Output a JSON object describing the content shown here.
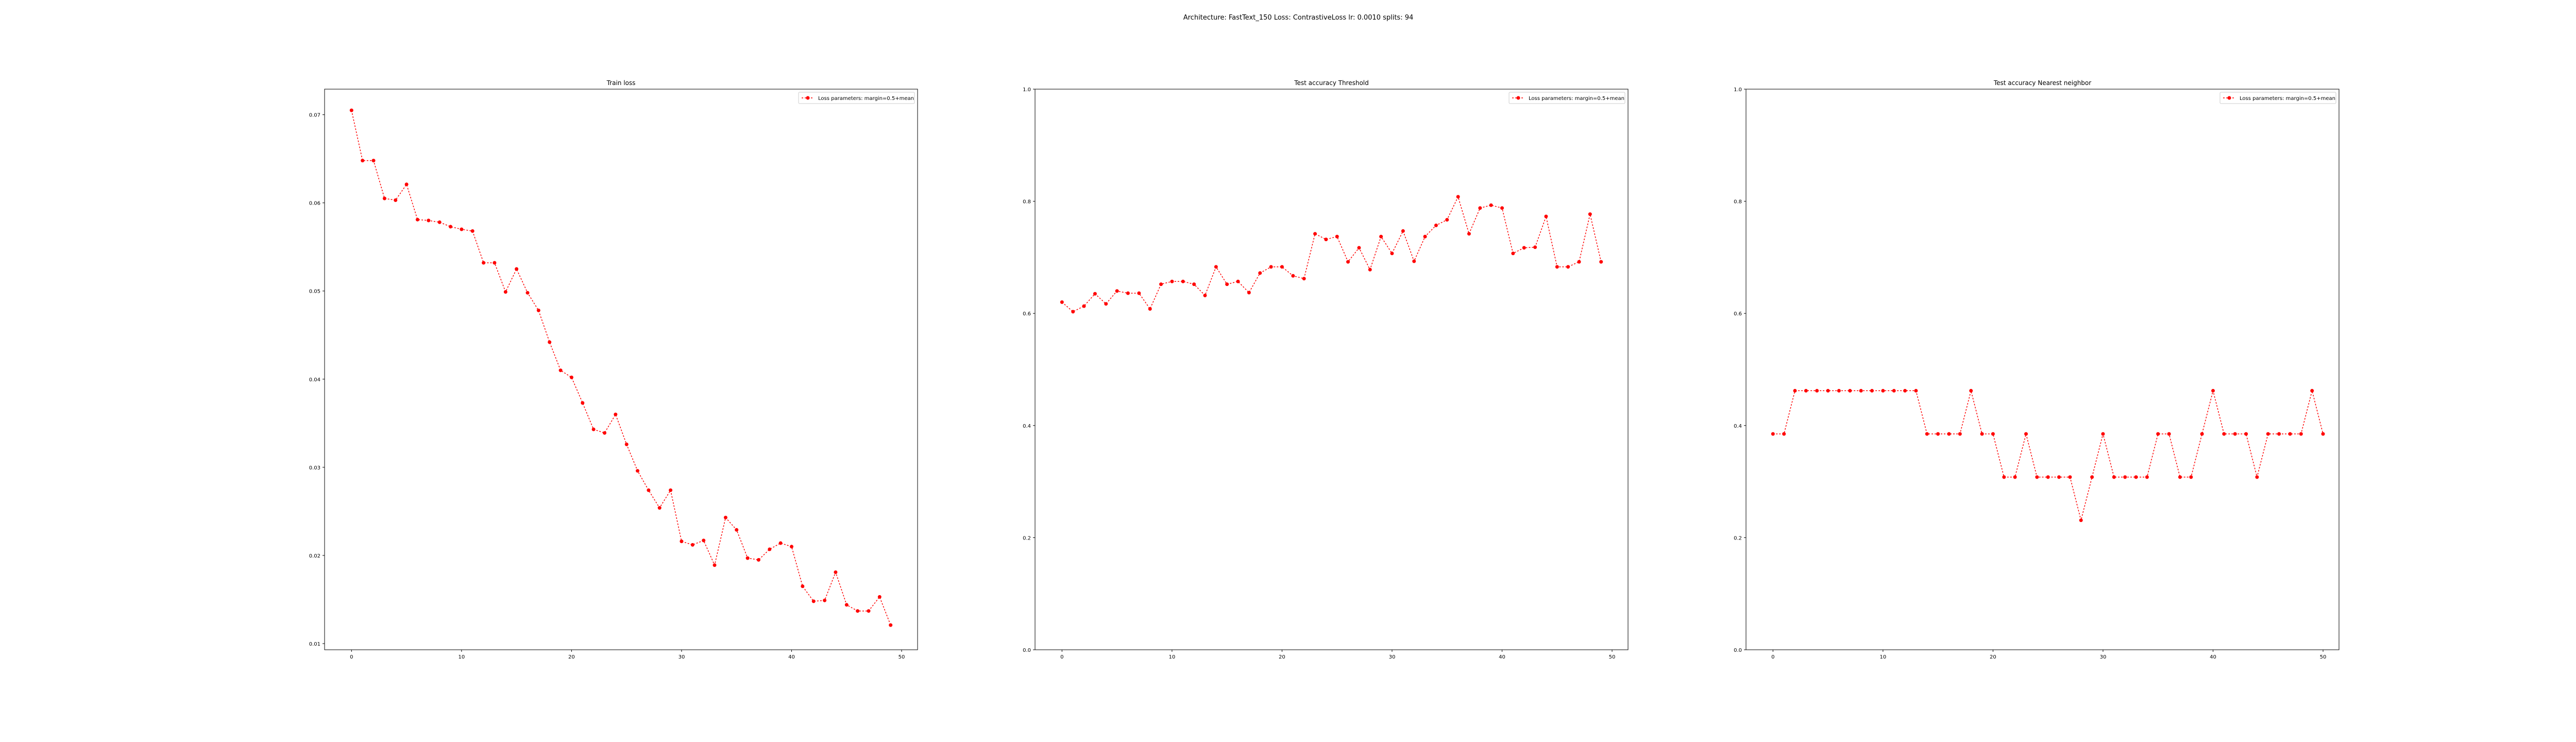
{
  "figure": {
    "suptitle": "Architecture: FastText_150 Loss: ContrastiveLoss lr: 0.0010 splits: 94"
  },
  "chart_data": [
    {
      "type": "line",
      "title": "Train loss",
      "xlabel": "",
      "ylabel": "",
      "xlim": [
        -2.45,
        51.45
      ],
      "ylim": [
        0.0093,
        0.0729
      ],
      "xticks": [
        0,
        10,
        20,
        30,
        40,
        50
      ],
      "yticks": [
        0.01,
        0.02,
        0.03,
        0.04,
        0.05,
        0.06,
        0.07
      ],
      "ytick_labels": [
        "0.01",
        "0.02",
        "0.03",
        "0.04",
        "0.05",
        "0.06",
        "0.07"
      ],
      "grid": false,
      "legend": {
        "location": "upper right",
        "entries": [
          "Loss parameters: margin=0.5+mean"
        ]
      },
      "series": [
        {
          "name": "Loss parameters: margin=0.5+mean",
          "color": "#ff0000",
          "x": [
            0,
            1,
            2,
            3,
            4,
            5,
            6,
            7,
            8,
            9,
            10,
            11,
            12,
            13,
            14,
            15,
            16,
            17,
            18,
            19,
            20,
            21,
            22,
            23,
            24,
            25,
            26,
            27,
            28,
            29,
            30,
            31,
            32,
            33,
            34,
            35,
            36,
            37,
            38,
            39,
            40,
            41,
            42,
            43,
            44,
            45,
            46,
            47,
            48,
            49,
            50
          ],
          "values": [
            0.0705,
            0.0648,
            0.0648,
            0.0605,
            0.0603,
            0.0621,
            0.0581,
            0.058,
            0.0578,
            0.0573,
            0.057,
            0.0568,
            0.0532,
            0.0532,
            0.0499,
            0.0525,
            0.0498,
            0.0478,
            0.0442,
            0.041,
            0.0402,
            0.0373,
            0.0343,
            0.0339,
            0.036,
            0.0326,
            0.0296,
            0.0274,
            0.0254,
            0.0274,
            0.0216,
            0.0212,
            0.0217,
            0.0189,
            0.0243,
            0.0229,
            0.0197,
            0.0195,
            0.0207,
            0.0214,
            0.021,
            0.0165,
            0.0148,
            0.0149,
            0.0181,
            0.0144,
            0.0137,
            0.0137,
            0.0153,
            0.0121,
            null
          ]
        }
      ]
    },
    {
      "type": "line",
      "title": "Test accuracy Threshold",
      "xlabel": "",
      "ylabel": "",
      "xlim": [
        -2.45,
        51.45
      ],
      "ylim": [
        0,
        1
      ],
      "xticks": [
        0,
        10,
        20,
        30,
        40,
        50
      ],
      "yticks": [
        0,
        0.2,
        0.4,
        0.6,
        0.8,
        1.0
      ],
      "ytick_labels": [
        "0.0",
        "0.2",
        "0.4",
        "0.6",
        "0.8",
        "1.0"
      ],
      "grid": false,
      "legend": {
        "location": "upper right",
        "entries": [
          "Loss parameters: margin=0.5+mean"
        ]
      },
      "series": [
        {
          "name": "Loss parameters: margin=0.5+mean",
          "color": "#ff0000",
          "x": [
            0,
            1,
            2,
            3,
            4,
            5,
            6,
            7,
            8,
            9,
            10,
            11,
            12,
            13,
            14,
            15,
            16,
            17,
            18,
            19,
            20,
            21,
            22,
            23,
            24,
            25,
            26,
            27,
            28,
            29,
            30,
            31,
            32,
            33,
            34,
            35,
            36,
            37,
            38,
            39,
            40,
            41,
            42,
            43,
            44,
            45,
            46,
            47,
            48,
            49,
            50
          ],
          "values": [
            0.62,
            0.603,
            0.613,
            0.635,
            0.617,
            0.64,
            0.636,
            0.636,
            0.608,
            0.652,
            0.657,
            0.657,
            0.652,
            0.632,
            0.683,
            0.652,
            0.657,
            0.637,
            0.672,
            0.683,
            0.683,
            0.667,
            0.662,
            0.742,
            0.732,
            0.737,
            0.692,
            0.717,
            0.678,
            0.737,
            0.707,
            0.747,
            0.693,
            0.737,
            0.757,
            0.767,
            0.808,
            0.742,
            0.788,
            0.793,
            0.788,
            0.707,
            0.717,
            0.718,
            0.773,
            0.683,
            0.683,
            0.692,
            0.777,
            0.692,
            null
          ]
        }
      ]
    },
    {
      "type": "line",
      "title": "Test accuracy Nearest neighbor",
      "xlabel": "",
      "ylabel": "",
      "xlim": [
        -2.45,
        51.45
      ],
      "ylim": [
        0,
        1
      ],
      "xticks": [
        0,
        10,
        20,
        30,
        40,
        50
      ],
      "yticks": [
        0,
        0.2,
        0.4,
        0.6,
        0.8,
        1.0
      ],
      "ytick_labels": [
        "0.0",
        "0.2",
        "0.4",
        "0.6",
        "0.8",
        "1.0"
      ],
      "grid": false,
      "legend": {
        "location": "upper right",
        "entries": [
          "Loss parameters: margin=0.5+mean"
        ]
      },
      "series": [
        {
          "name": "Loss parameters: margin=0.5+mean",
          "color": "#ff0000",
          "x": [
            0,
            1,
            2,
            3,
            4,
            5,
            6,
            7,
            8,
            9,
            10,
            11,
            12,
            13,
            14,
            15,
            16,
            17,
            18,
            19,
            20,
            21,
            22,
            23,
            24,
            25,
            26,
            27,
            28,
            29,
            30,
            31,
            32,
            33,
            34,
            35,
            36,
            37,
            38,
            39,
            40,
            41,
            42,
            43,
            44,
            45,
            46,
            47,
            48,
            49,
            50
          ],
          "values": [
            0.385,
            0.385,
            0.462,
            0.462,
            0.462,
            0.462,
            0.462,
            0.462,
            0.462,
            0.462,
            0.462,
            0.462,
            0.462,
            0.462,
            0.385,
            0.385,
            0.385,
            0.385,
            0.462,
            0.385,
            0.385,
            0.308,
            0.308,
            0.385,
            0.308,
            0.308,
            0.308,
            0.308,
            0.231,
            0.308,
            0.385,
            0.308,
            0.308,
            0.308,
            0.308,
            0.385,
            0.385,
            0.308,
            0.308,
            0.385,
            0.462,
            0.385,
            0.385,
            0.385,
            0.308,
            0.385,
            0.385,
            0.385,
            0.385,
            0.462,
            0.385
          ]
        }
      ]
    }
  ]
}
